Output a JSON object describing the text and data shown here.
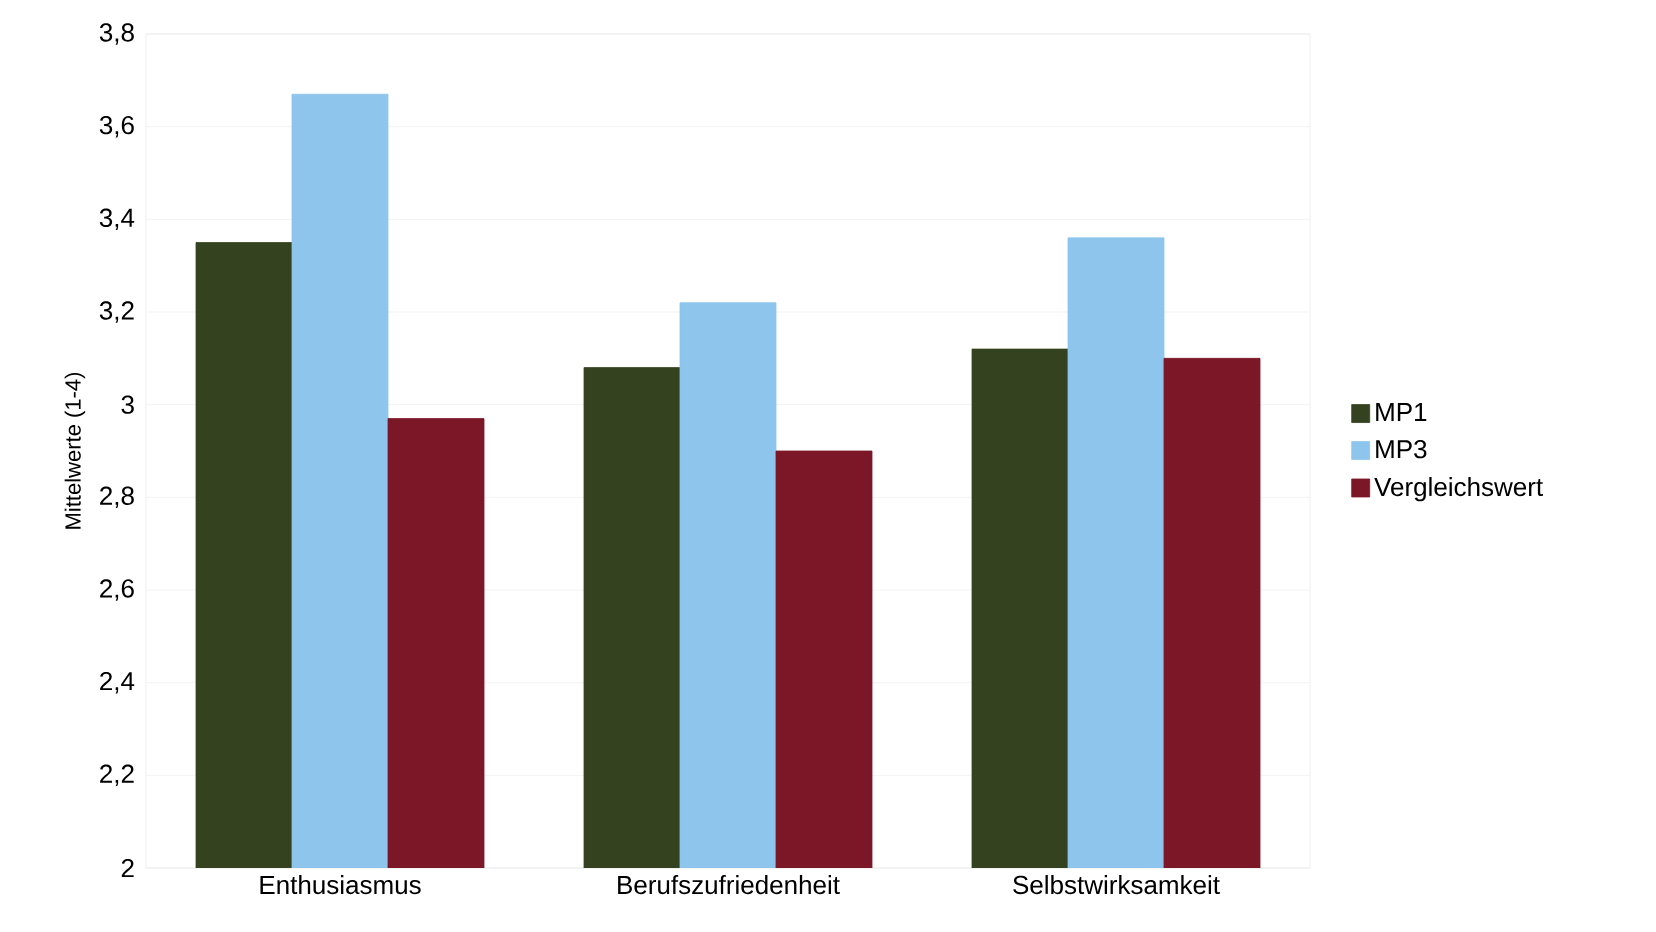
{
  "chart_data": {
    "type": "bar",
    "ylabel": "Mittelwerte (1-4)",
    "categories": [
      "Enthusiasmus",
      "Berufszufriedenheit",
      "Selbstwirksamkeit"
    ],
    "series": [
      {
        "name": "MP1",
        "color": "#354220",
        "values": [
          3.35,
          3.08,
          3.12
        ]
      },
      {
        "name": "MP3",
        "color": "#8dc5ec",
        "values": [
          3.67,
          3.22,
          3.36
        ]
      },
      {
        "name": "Vergleichswert",
        "color": "#7b1726",
        "values": [
          2.97,
          2.9,
          3.1
        ]
      }
    ],
    "ylim": [
      2,
      3.8
    ],
    "yticks": [
      2,
      {
        "value": 2.2,
        "label": "2,2"
      },
      {
        "value": 2.4,
        "label": "2,4"
      },
      {
        "value": 2.6,
        "label": "2,6"
      },
      {
        "value": 2.8,
        "label": "2,8"
      },
      3,
      {
        "value": 3.2,
        "label": "3,2"
      },
      {
        "value": 3.4,
        "label": "3,4"
      },
      {
        "value": 3.6,
        "label": "3,6"
      },
      {
        "value": 3.8,
        "label": "3,8"
      }
    ],
    "grid": "y",
    "legend": "right"
  }
}
